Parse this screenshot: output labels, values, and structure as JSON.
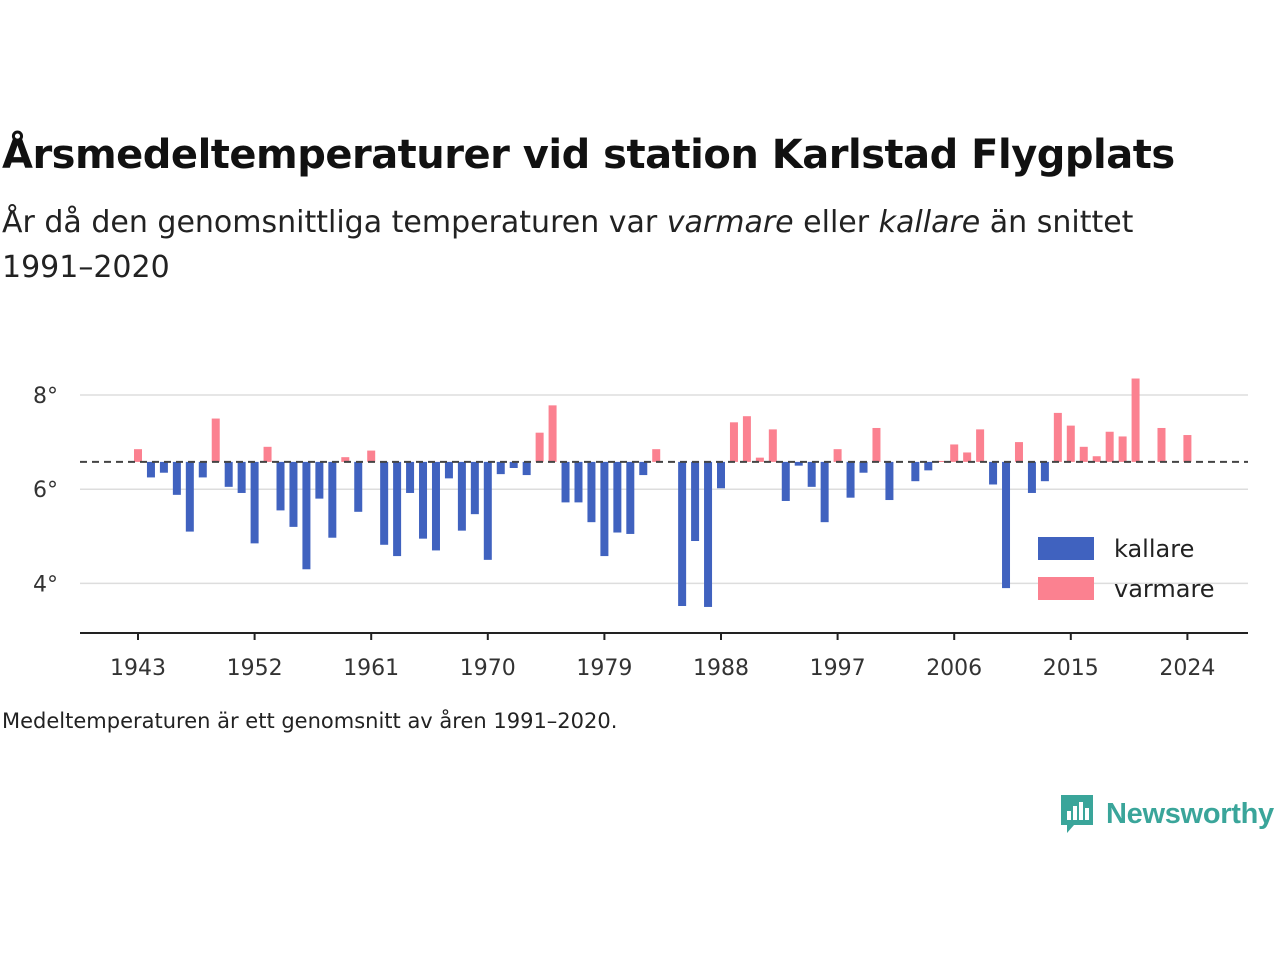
{
  "header": {
    "title": "Årsmedeltemperaturer vid station Karlstad Flygplats",
    "subtitle_parts": [
      "År då den genomsnittliga temperaturen var ",
      "varmare",
      " eller ",
      "kallare",
      " än snittet 1991–2020"
    ]
  },
  "footnote": "Medeltemperaturen är ett genomsnitt av åren 1991–2020.",
  "brand": {
    "name": "Newsworthy",
    "icon": "newsworthy-logo-icon",
    "color": "#3aa59a"
  },
  "colors": {
    "kallare": "#4062bf",
    "varmare": "#fb8190",
    "grid": "#dddddd",
    "axis": "#222222",
    "reference": "#444444"
  },
  "chart_data": {
    "type": "bar",
    "baseline": 6.58,
    "ylim": [
      3.0,
      8.8
    ],
    "yticks": [
      4,
      6,
      8
    ],
    "ytick_suffix": "°",
    "xticks": [
      1943,
      1952,
      1961,
      1970,
      1979,
      1988,
      1997,
      2006,
      2015,
      2024
    ],
    "legend": [
      "kallare",
      "varmare"
    ],
    "legend_position": "bottom-right",
    "grid": true,
    "x": [
      1943,
      1944,
      1945,
      1946,
      1947,
      1948,
      1949,
      1950,
      1951,
      1952,
      1953,
      1954,
      1955,
      1956,
      1957,
      1958,
      1959,
      1960,
      1961,
      1962,
      1963,
      1964,
      1965,
      1966,
      1967,
      1968,
      1969,
      1970,
      1971,
      1972,
      1973,
      1974,
      1975,
      1976,
      1977,
      1978,
      1979,
      1980,
      1981,
      1982,
      1983,
      1984,
      1985,
      1986,
      1987,
      1988,
      1989,
      1990,
      1991,
      1992,
      1993,
      1994,
      1995,
      1996,
      1997,
      1998,
      1999,
      2000,
      2001,
      2002,
      2003,
      2004,
      2005,
      2006,
      2007,
      2008,
      2009,
      2010,
      2011,
      2012,
      2013,
      2014,
      2015,
      2016,
      2017,
      2018,
      2019,
      2020,
      2021,
      2022,
      2023,
      2024
    ],
    "values": [
      6.85,
      6.25,
      6.35,
      5.88,
      5.1,
      6.25,
      7.5,
      6.05,
      5.92,
      4.85,
      6.9,
      5.55,
      5.2,
      4.3,
      5.8,
      4.97,
      6.68,
      5.52,
      6.82,
      4.82,
      4.58,
      5.92,
      4.95,
      4.7,
      6.23,
      5.12,
      5.47,
      4.5,
      6.32,
      6.45,
      6.3,
      7.2,
      7.78,
      5.72,
      5.72,
      5.3,
      4.58,
      5.08,
      5.05,
      6.3,
      6.85,
      null,
      3.52,
      4.9,
      3.5,
      6.02,
      7.42,
      7.55,
      6.67,
      7.27,
      5.75,
      6.5,
      6.05,
      5.3,
      6.85,
      5.82,
      6.35,
      7.3,
      5.77,
      null,
      6.17,
      6.4,
      6.6,
      6.95,
      6.78,
      7.27,
      6.1,
      3.9,
      7.0,
      5.92,
      6.17,
      7.62,
      7.35,
      6.9,
      6.7,
      7.22,
      7.12,
      8.35,
      null,
      7.3,
      null,
      7.15
    ]
  }
}
